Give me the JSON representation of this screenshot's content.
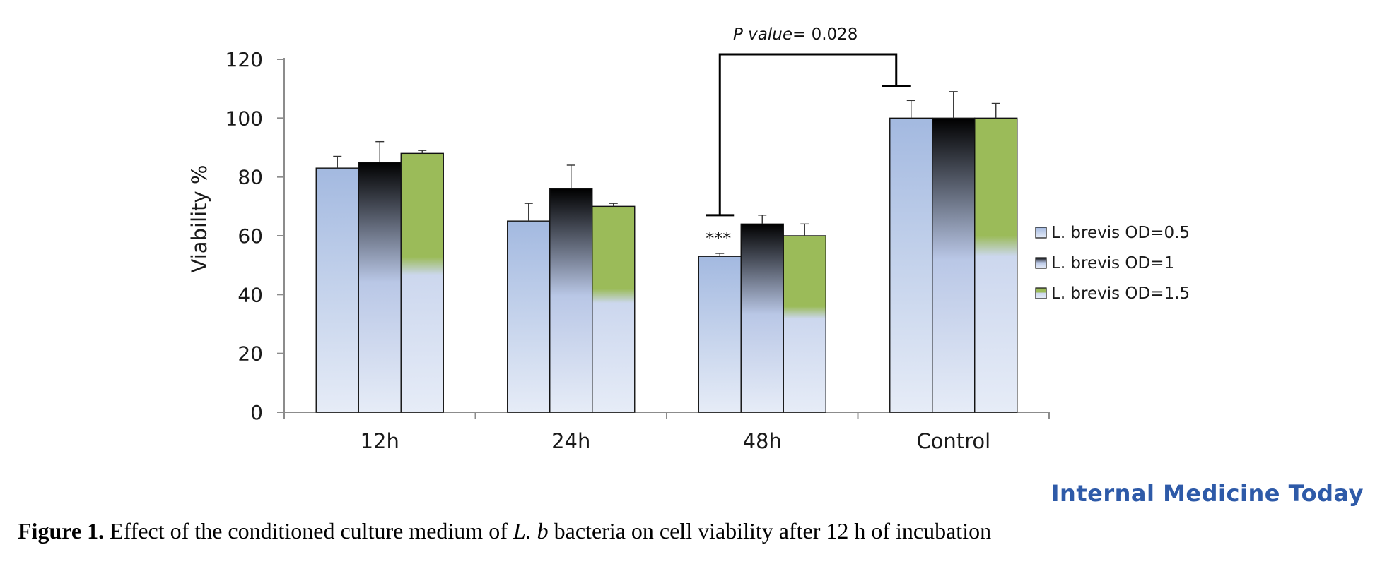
{
  "chart_data": {
    "type": "bar",
    "categories": [
      "12h",
      "24h",
      "48h",
      "Control"
    ],
    "series": [
      {
        "name": "L. brevis OD=0.5",
        "values": [
          83,
          65,
          53,
          100
        ],
        "errors": [
          4,
          6,
          1,
          6
        ]
      },
      {
        "name": "L. brevis OD=1",
        "values": [
          85,
          76,
          64,
          100
        ],
        "errors": [
          7,
          8,
          3,
          9
        ]
      },
      {
        "name": "L. brevis OD=1.5",
        "values": [
          88,
          70,
          60,
          100
        ],
        "errors": [
          1,
          1,
          4,
          5
        ]
      }
    ],
    "ylabel": "Viability %",
    "ylim": [
      0,
      120
    ],
    "yticks": [
      0,
      20,
      40,
      60,
      80,
      100,
      120
    ],
    "legend_position": "right",
    "colors": {
      "od05_top": "#a6bce1",
      "od05_bottom": "#e6ecf7",
      "od1_top": "#000000",
      "od1_mid": "#c0cde8",
      "od15_top": "#9bbb59",
      "od15_base": "#d3ddf0"
    },
    "annotations": {
      "significance": "***",
      "significance_target": {
        "category": "48h",
        "series": 0
      },
      "pvalue_label": "P value",
      "pvalue_text": "= 0.028",
      "bracket_from": "48h",
      "bracket_to": "Control"
    }
  },
  "brand": "Internal Medicine Today",
  "caption": {
    "prefix": "Figure 1.",
    "text_before": " Effect of the conditioned culture medium of ",
    "species": "L. b",
    "text_after": " bacteria on cell viability after 12 h of incubation"
  }
}
